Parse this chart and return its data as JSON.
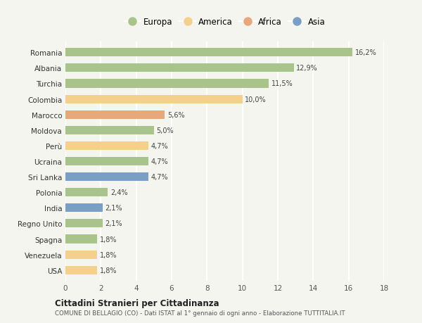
{
  "countries": [
    "Romania",
    "Albania",
    "Turchia",
    "Colombia",
    "Marocco",
    "Moldova",
    "Perù",
    "Ucraina",
    "Sri Lanka",
    "Polonia",
    "India",
    "Regno Unito",
    "Spagna",
    "Venezuela",
    "USA"
  ],
  "values": [
    16.2,
    12.9,
    11.5,
    10.0,
    5.6,
    5.0,
    4.7,
    4.7,
    4.7,
    2.4,
    2.1,
    2.1,
    1.8,
    1.8,
    1.8
  ],
  "labels": [
    "16,2%",
    "12,9%",
    "11,5%",
    "10,0%",
    "5,6%",
    "5,0%",
    "4,7%",
    "4,7%",
    "4,7%",
    "2,4%",
    "2,1%",
    "2,1%",
    "1,8%",
    "1,8%",
    "1,8%"
  ],
  "continents": [
    "Europa",
    "Europa",
    "Europa",
    "America",
    "Africa",
    "Europa",
    "America",
    "Europa",
    "Asia",
    "Europa",
    "Asia",
    "Europa",
    "Europa",
    "America",
    "America"
  ],
  "colors": {
    "Europa": "#a8c48a",
    "America": "#f5d08c",
    "Africa": "#e8a87c",
    "Asia": "#7b9ec4"
  },
  "legend_order": [
    "Europa",
    "America",
    "Africa",
    "Asia"
  ],
  "title1": "Cittadini Stranieri per Cittadinanza",
  "title2": "COMUNE DI BELLAGIO (CO) - Dati ISTAT al 1° gennaio di ogni anno - Elaborazione TUTTITALIA.IT",
  "xlim": [
    0,
    18
  ],
  "xticks": [
    0,
    2,
    4,
    6,
    8,
    10,
    12,
    14,
    16,
    18
  ],
  "background_color": "#f5f5f0",
  "grid_color": "#ffffff"
}
